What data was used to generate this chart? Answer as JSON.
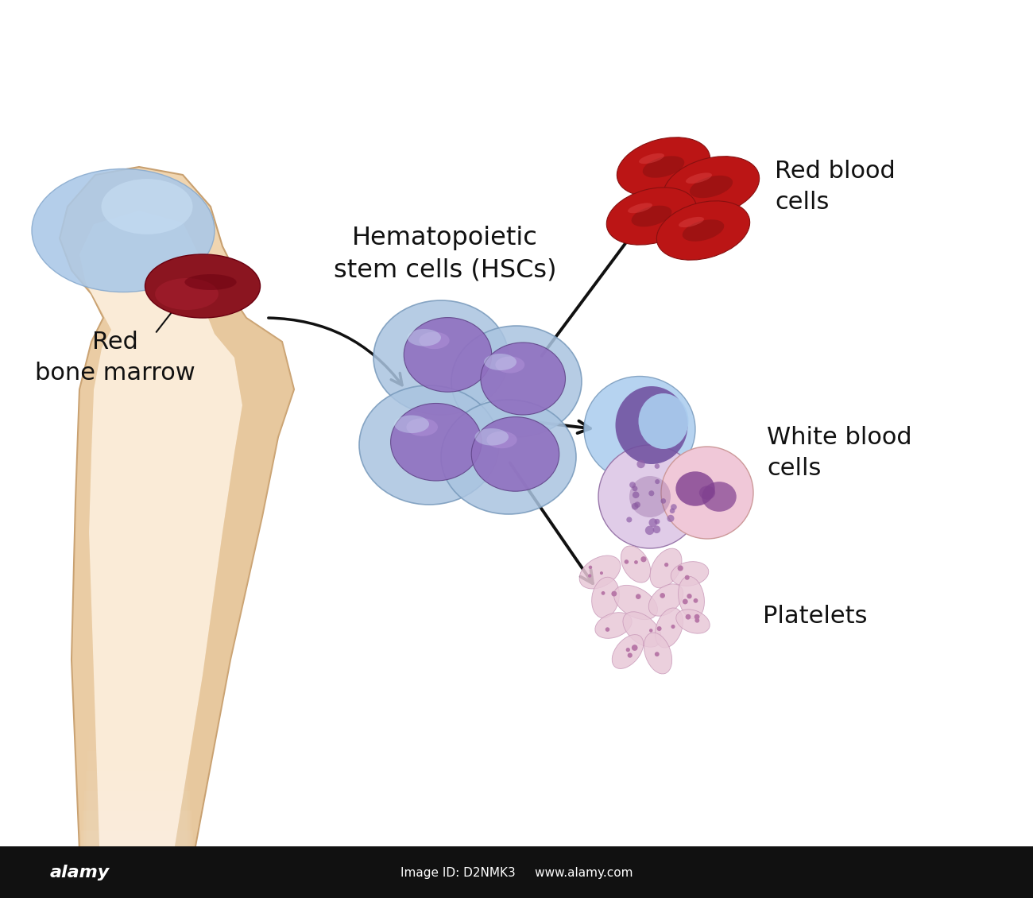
{
  "background_color": "#ffffff",
  "labels": {
    "hsc": "Hematopoietic\nstem cells (HSCs)",
    "red_marrow": "Red\nbone marrow",
    "rbc": "Red blood\ncells",
    "wbc": "White blood\ncells",
    "platelets": "Platelets"
  },
  "colors": {
    "bone_main": "#f0d5b0",
    "bone_light": "#faebd7",
    "bone_shadow": "#ddb98a",
    "bone_edge": "#c8a070",
    "cartilage_main": "#aac8e8",
    "cartilage_light": "#c8dff5",
    "cartilage_dark": "#88aace",
    "marrow_main": "#8b1520",
    "marrow_dark": "#6b0010",
    "marrow_light": "#aa2030",
    "hsc_outer": "#aac4e0",
    "hsc_nucleus": "#9070c0",
    "hsc_nucleus_light": "#b090d8",
    "rbc_main": "#bb1515",
    "rbc_dark": "#881010",
    "wbc1_outer": "#aaccee",
    "wbc1_nucleus": "#7050a0",
    "wbc2_fill": "#e8d0e8",
    "wbc2_nucleus": "#805090",
    "wbc3_fill": "#f0c8d8",
    "wbc3_nucleus": "#904060",
    "platelet_fill": "#e8c8d8",
    "platelet_edge": "#c898b8",
    "platelet_dot": "#b878a8",
    "arrow_color": "#111111",
    "text_color": "#111111"
  },
  "figsize": [
    13.0,
    11.3
  ],
  "dpi": 100
}
